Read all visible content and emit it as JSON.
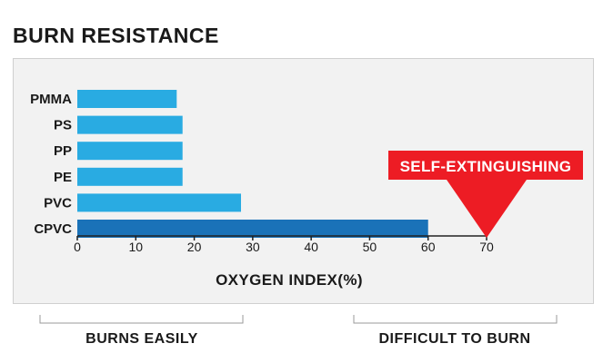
{
  "title": "BURN RESISTANCE",
  "chart_data": {
    "type": "bar",
    "orientation": "horizontal",
    "categories": [
      "PMMA",
      "PS",
      "PP",
      "PE",
      "PVC",
      "CPVC"
    ],
    "values": [
      17,
      18,
      18,
      18,
      28,
      60
    ],
    "xlabel": "OXYGEN INDEX(%)",
    "ylabel": "",
    "xlim": [
      0,
      70
    ],
    "xticks": [
      0,
      10,
      20,
      30,
      40,
      50,
      60,
      70
    ],
    "grid": false,
    "colors": {
      "default": "#29abe2",
      "highlight": "#1a72b8"
    },
    "highlight_category": "CPVC",
    "annotations": [
      {
        "text": "SELF-EXTINGUISHING",
        "x": 70,
        "color": "#ed1c24"
      }
    ]
  },
  "footer": {
    "left_label": "BURNS EASILY",
    "right_label": "DIFFICULT TO BURN"
  }
}
